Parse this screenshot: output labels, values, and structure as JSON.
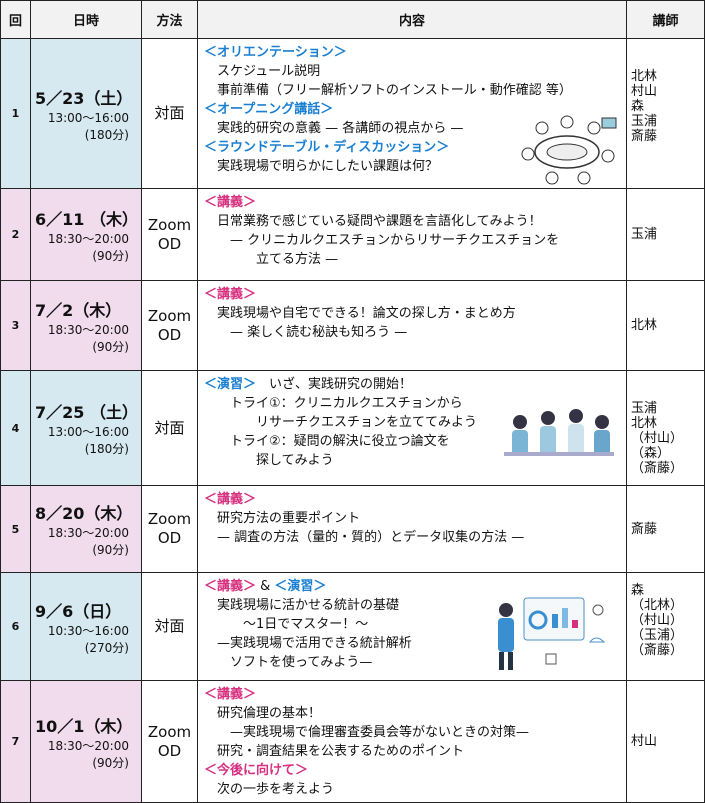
{
  "table": {
    "headers": [
      "回",
      "日時",
      "方法",
      "内容",
      "講師"
    ],
    "rows": [
      {
        "no": "1",
        "date": "5／23（土）",
        "time": "13:00～16:00",
        "duration": "(180分)",
        "method": [
          "対面"
        ],
        "color": "#d6e9f1",
        "content": [
          [
            {
              "text": "＜オリエンテーション＞",
              "color": "#1a7fd0"
            }
          ],
          [
            {
              "text": "　スケジュール説明"
            }
          ],
          [
            {
              "text": "　事前準備（フリー解析ソフトのインストール・動作確認 等）"
            }
          ],
          [
            {
              "text": "＜オープニング講話＞",
              "color": "#1a7fd0"
            }
          ],
          [
            {
              "text": "　実践的研究の意義 — 各講師の視点から —"
            }
          ],
          [
            {
              "text": "＜ラウンドテーブル・ディスカッション＞",
              "color": "#1a7fd0"
            }
          ],
          [
            {
              "text": "　実践現場で明らかにしたい課題は何？"
            }
          ]
        ],
        "instructors": [
          "北林",
          "村山",
          "森",
          "玉浦",
          "斎藤"
        ]
      },
      {
        "no": "2",
        "date": "6／11 （木）",
        "time": "18:30～20:00",
        "duration": "(90分)",
        "method": [
          "Zoom",
          "OD"
        ],
        "color": "#f1dcee",
        "content": [
          [
            {
              "text": "＜講義＞",
              "color": "#d6307f"
            }
          ],
          [
            {
              "text": "　日常業務で感じている疑問や課題を言語化してみよう！"
            }
          ],
          [
            {
              "text": "　　— クリニカルクエスチョンからリサーチクエスチョンを"
            }
          ],
          [
            {
              "text": "　　　　立てる方法 —"
            }
          ]
        ],
        "instructors": [
          "玉浦"
        ]
      },
      {
        "no": "3",
        "date": "7／2（木）",
        "time": "18:30～20:00",
        "duration": "(90分)",
        "method": [
          "Zoom",
          "OD"
        ],
        "color": "#f1dcee",
        "content": [
          [
            {
              "text": "＜講義＞",
              "color": "#d6307f"
            }
          ],
          [
            {
              "text": "　実践現場や自宅でできる！論文の探し方・まとめ方"
            }
          ],
          [
            {
              "text": "　　— 楽しく読む秘訣も知ろう —"
            }
          ]
        ],
        "instructors": [
          "北林"
        ]
      },
      {
        "no": "4",
        "date": "7／25 （土）",
        "time": "13:00～16:00",
        "duration": "(180分)",
        "method": [
          "対面"
        ],
        "color": "#d6e9f1",
        "content": [
          [
            {
              "text": "＜演習＞",
              "color": "#1a7fd0"
            },
            {
              "text": "　いざ、実践研究の開始！"
            }
          ],
          [
            {
              "text": "　　トライ①：クリニカルクエスチョンから"
            }
          ],
          [
            {
              "text": "　　　　リサーチクエスチョンを立ててみよう"
            }
          ],
          [
            {
              "text": "　　トライ②：疑問の解決に役立つ論文を"
            }
          ],
          [
            {
              "text": "　　　　探してみよう"
            }
          ]
        ],
        "instructors": [
          "玉浦",
          "北林",
          "（村山）",
          "（森）",
          "（斎藤）"
        ]
      },
      {
        "no": "5",
        "date": "8／20（木）",
        "time": "18:30～20:00",
        "duration": "(90分)",
        "method": [
          "Zoom",
          "OD"
        ],
        "color": "#f1dcee",
        "content": [
          [
            {
              "text": "＜講義＞",
              "color": "#d6307f"
            }
          ],
          [
            {
              "text": "　研究方法の重要ポイント"
            }
          ],
          [
            {
              "text": "　— 調査の方法（量的・質的）とデータ収集の方法 —"
            }
          ]
        ],
        "instructors": [
          "斎藤"
        ]
      },
      {
        "no": "6",
        "date": "9／6（日）",
        "time": "10:30～16:00",
        "duration": "(270分)",
        "method": [
          "対面"
        ],
        "color": "#d6e9f1",
        "content": [
          [
            {
              "text": "＜講義＞",
              "color": "#d6307f"
            },
            {
              "text": " & "
            },
            {
              "text": "＜演習＞",
              "color": "#1a7fd0"
            }
          ],
          [
            {
              "text": "　実践現場に活かせる統計の基礎"
            }
          ],
          [
            {
              "text": "　　　～1日でマスター！～"
            }
          ],
          [
            {
              "text": "　—実践現場で活用できる統計解析"
            }
          ],
          [
            {
              "text": "　　ソフトを使ってみよう—"
            }
          ]
        ],
        "instructors": [
          "森",
          "（北林）",
          "（村山）",
          "（玉浦）",
          "（斎藤）"
        ]
      },
      {
        "no": "7",
        "date": "10／1（木）",
        "time": "18:30～20:00",
        "duration": "(90分)",
        "method": [
          "Zoom",
          "OD"
        ],
        "color": "#f1dcee",
        "content": [
          [
            {
              "text": "＜講義＞",
              "color": "#d6307f"
            }
          ],
          [
            {
              "text": "　研究倫理の基本！"
            }
          ],
          [
            {
              "text": "　　—実践現場で倫理審査委員会等がないときの対策—"
            }
          ],
          [
            {
              "text": "　研究・調査結果を公表するためのポイント"
            }
          ],
          [
            {
              "text": "＜今後に向けて＞",
              "color": "#d6307f"
            }
          ],
          [
            {
              "text": "　次の一歩を考えよう"
            }
          ]
        ],
        "instructors": [
          "村山"
        ]
      }
    ]
  }
}
